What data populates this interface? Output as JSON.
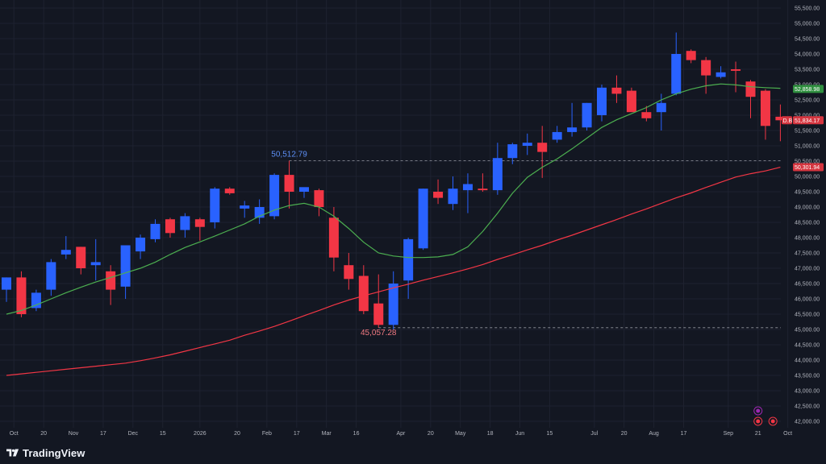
{
  "brand": {
    "name": "TradingView"
  },
  "chart_data": {
    "type": "candlestick",
    "y_axis": {
      "ticks": [
        "42,000.00",
        "42,500.00",
        "43,000.00",
        "43,500.00",
        "44,000.00",
        "44,500.00",
        "45,000.00",
        "45,500.00",
        "46,000.00",
        "46,500.00",
        "47,000.00",
        "47,500.00",
        "48,000.00",
        "48,500.00",
        "49,000.00",
        "49,500.00",
        "50,000.00",
        "50,500.00",
        "51,000.00",
        "51,500.00",
        "52,000.00",
        "52,500.00",
        "53,000.00",
        "53,500.00",
        "54,000.00",
        "54,500.00",
        "55,000.00",
        "55,500.00"
      ],
      "range": [
        41950,
        55600
      ]
    },
    "x_axis": {
      "ticks": [
        {
          "label": "Oct",
          "i": 0.5
        },
        {
          "label": "20",
          "i": 2.5
        },
        {
          "label": "Nov",
          "i": 4.5
        },
        {
          "label": "17",
          "i": 6.5
        },
        {
          "label": "Dec",
          "i": 8.5
        },
        {
          "label": "15",
          "i": 10.5
        },
        {
          "label": "2026",
          "i": 13
        },
        {
          "label": "20",
          "i": 15.5
        },
        {
          "label": "Feb",
          "i": 17.5
        },
        {
          "label": "17",
          "i": 19.5
        },
        {
          "label": "Mar",
          "i": 21.5
        },
        {
          "label": "16",
          "i": 23.5
        },
        {
          "label": "Apr",
          "i": 26.5
        },
        {
          "label": "20",
          "i": 28.5
        },
        {
          "label": "May",
          "i": 30.5
        },
        {
          "label": "18",
          "i": 32.5
        },
        {
          "label": "Jun",
          "i": 34.5
        },
        {
          "label": "15",
          "i": 36.5
        },
        {
          "label": "Jul",
          "i": 39.5
        },
        {
          "label": "20",
          "i": 41.5
        },
        {
          "label": "Aug",
          "i": 43.5
        },
        {
          "label": "17",
          "i": 45.5
        },
        {
          "label": "Sep",
          "i": 48.5
        },
        {
          "label": "21",
          "i": 50.5
        },
        {
          "label": "Oct",
          "i": 52.5
        }
      ]
    },
    "candles": [
      {
        "o": 46300,
        "h": 46700,
        "l": 45900,
        "c": 46700
      },
      {
        "o": 46700,
        "h": 46900,
        "l": 45400,
        "c": 45500
      },
      {
        "o": 45700,
        "h": 46300,
        "l": 45600,
        "c": 46200
      },
      {
        "o": 46300,
        "h": 47300,
        "l": 46100,
        "c": 47200
      },
      {
        "o": 47450,
        "h": 48050,
        "l": 47300,
        "c": 47600
      },
      {
        "o": 47700,
        "h": 47700,
        "l": 46800,
        "c": 47000
      },
      {
        "o": 47100,
        "h": 47950,
        "l": 46600,
        "c": 47200
      },
      {
        "o": 46900,
        "h": 47100,
        "l": 45800,
        "c": 46300
      },
      {
        "o": 46400,
        "h": 47750,
        "l": 46000,
        "c": 47750
      },
      {
        "o": 47550,
        "h": 48100,
        "l": 47300,
        "c": 48000
      },
      {
        "o": 47950,
        "h": 48600,
        "l": 47850,
        "c": 48450
      },
      {
        "o": 48600,
        "h": 48650,
        "l": 48000,
        "c": 48150
      },
      {
        "o": 48250,
        "h": 48800,
        "l": 48000,
        "c": 48700
      },
      {
        "o": 48600,
        "h": 48650,
        "l": 47900,
        "c": 48350
      },
      {
        "o": 48500,
        "h": 49650,
        "l": 48300,
        "c": 49600
      },
      {
        "o": 49600,
        "h": 49650,
        "l": 49400,
        "c": 49450
      },
      {
        "o": 48950,
        "h": 49200,
        "l": 48650,
        "c": 49050
      },
      {
        "o": 48650,
        "h": 49250,
        "l": 48450,
        "c": 49000
      },
      {
        "o": 48700,
        "h": 50100,
        "l": 48600,
        "c": 50050
      },
      {
        "o": 50050,
        "h": 50513,
        "l": 48950,
        "c": 49500
      },
      {
        "o": 49500,
        "h": 49600,
        "l": 49300,
        "c": 49650
      },
      {
        "o": 49550,
        "h": 49600,
        "l": 48700,
        "c": 49000
      },
      {
        "o": 48650,
        "h": 49000,
        "l": 46900,
        "c": 47350
      },
      {
        "o": 47100,
        "h": 47500,
        "l": 46300,
        "c": 46650
      },
      {
        "o": 46750,
        "h": 47100,
        "l": 45500,
        "c": 45600
      },
      {
        "o": 45850,
        "h": 46800,
        "l": 45057.28,
        "c": 45150
      },
      {
        "o": 45150,
        "h": 46900,
        "l": 45000,
        "c": 46500
      },
      {
        "o": 46600,
        "h": 48000,
        "l": 46000,
        "c": 47950
      },
      {
        "o": 47650,
        "h": 49600,
        "l": 47600,
        "c": 49600
      },
      {
        "o": 49500,
        "h": 49900,
        "l": 49100,
        "c": 49300
      },
      {
        "o": 49100,
        "h": 50000,
        "l": 48900,
        "c": 49600
      },
      {
        "o": 49550,
        "h": 50100,
        "l": 48800,
        "c": 49750
      },
      {
        "o": 49600,
        "h": 50100,
        "l": 49500,
        "c": 49550
      },
      {
        "o": 49550,
        "h": 51100,
        "l": 49400,
        "c": 50600
      },
      {
        "o": 50600,
        "h": 51100,
        "l": 50400,
        "c": 51050
      },
      {
        "o": 51000,
        "h": 51400,
        "l": 50700,
        "c": 51100
      },
      {
        "o": 51100,
        "h": 51650,
        "l": 49950,
        "c": 50800
      },
      {
        "o": 51200,
        "h": 51650,
        "l": 51100,
        "c": 51450
      },
      {
        "o": 51450,
        "h": 52400,
        "l": 51300,
        "c": 51600
      },
      {
        "o": 51600,
        "h": 52400,
        "l": 51500,
        "c": 52400
      },
      {
        "o": 52000,
        "h": 53000,
        "l": 51800,
        "c": 52900
      },
      {
        "o": 52900,
        "h": 53300,
        "l": 52400,
        "c": 52700
      },
      {
        "o": 52800,
        "h": 52900,
        "l": 52200,
        "c": 52100
      },
      {
        "o": 52100,
        "h": 52300,
        "l": 51800,
        "c": 51900
      },
      {
        "o": 52100,
        "h": 52700,
        "l": 51500,
        "c": 52400
      },
      {
        "o": 52700,
        "h": 54700,
        "l": 52650,
        "c": 54000
      },
      {
        "o": 54100,
        "h": 54150,
        "l": 53700,
        "c": 53800
      },
      {
        "o": 53800,
        "h": 53900,
        "l": 52700,
        "c": 53300
      },
      {
        "o": 53250,
        "h": 53600,
        "l": 53200,
        "c": 53400
      },
      {
        "o": 53500,
        "h": 53750,
        "l": 52750,
        "c": 53450
      },
      {
        "o": 53100,
        "h": 53150,
        "l": 51900,
        "c": 52600
      },
      {
        "o": 52800,
        "h": 52850,
        "l": 51200,
        "c": 51650
      },
      {
        "o": 51950,
        "h": 52350,
        "l": 51150,
        "c": 51834.17
      }
    ],
    "ma_fast": {
      "color": "#4caf50",
      "values": [
        45500,
        45620,
        45800,
        46000,
        46200,
        46380,
        46550,
        46700,
        46850,
        47000,
        47200,
        47450,
        47680,
        47860,
        48050,
        48250,
        48450,
        48700,
        48900,
        49050,
        49120,
        49000,
        48700,
        48300,
        47850,
        47500,
        47400,
        47350,
        47350,
        47370,
        47450,
        47700,
        48200,
        48800,
        49450,
        49970,
        50300,
        50570,
        50900,
        51250,
        51600,
        51850,
        52050,
        52250,
        52500,
        52700,
        52850,
        52960,
        53020,
        52990,
        52930,
        52900,
        52880
      ]
    },
    "ma_slow": {
      "color": "#f23645",
      "values": [
        43500,
        43550,
        43600,
        43650,
        43700,
        43750,
        43800,
        43850,
        43900,
        43980,
        44070,
        44170,
        44290,
        44410,
        44530,
        44650,
        44810,
        44950,
        45100,
        45270,
        45450,
        45620,
        45800,
        45960,
        46100,
        46230,
        46360,
        46480,
        46610,
        46730,
        46850,
        46980,
        47120,
        47290,
        47440,
        47600,
        47750,
        47920,
        48080,
        48250,
        48420,
        48590,
        48770,
        48940,
        49120,
        49300,
        49460,
        49640,
        49810,
        49980,
        50090,
        50180,
        50300
      ]
    },
    "levels": [
      {
        "value": 50512.79,
        "label": "50,512.79",
        "color": "#5d8ff5",
        "at_index": 19
      },
      {
        "value": 45057.28,
        "label": "45,057.28",
        "color": "#f27a82",
        "at_index": 25
      }
    ],
    "price_labels": [
      {
        "value": 52858.98,
        "text": "52,858.98",
        "bg": "#2f8f3f"
      },
      {
        "value": 51834.17,
        "text": "51,834.17",
        "bg": "#d5353f",
        "prefix": "D.B"
      },
      {
        "value": 50301.94,
        "text": "50,301.94",
        "bg": "#d5353f"
      }
    ],
    "colors": {
      "up": "#2962ff",
      "down": "#f23645",
      "grid": "#1e2230",
      "axis_text": "#b2b5be"
    }
  }
}
